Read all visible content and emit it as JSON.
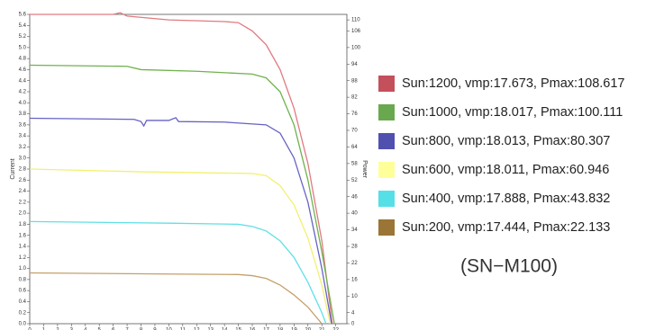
{
  "chart_data": {
    "type": "line",
    "title": "(SN−M100)",
    "y_label": "Current",
    "y2_label": "Power",
    "xlim": [
      0,
      22.8
    ],
    "xticks": [
      0,
      1,
      2,
      3,
      4,
      5,
      6,
      7,
      8,
      9,
      10,
      11,
      12,
      13,
      14,
      15,
      16,
      17,
      18,
      19,
      20,
      21,
      22
    ],
    "ylim": [
      0,
      5.6
    ],
    "yticks": [
      {
        "value": 0,
        "label": "0.0"
      },
      0.2,
      0.4,
      0.6,
      0.8,
      {
        "value": 1,
        "label": "1.0"
      },
      1.2,
      1.4,
      1.6,
      1.8,
      {
        "value": 2,
        "label": "2.0"
      },
      2.2,
      2.4,
      2.6,
      2.8,
      {
        "value": 3,
        "label": "3.0"
      },
      3.2,
      3.4,
      3.6,
      3.8,
      {
        "value": 4,
        "label": "4.0"
      },
      4.2,
      4.4,
      4.6,
      4.8,
      {
        "value": 5,
        "label": "5.0"
      },
      5.2,
      5.4,
      5.6
    ],
    "y2lim": [
      0,
      112
    ],
    "y2ticks": [
      0,
      4,
      10,
      16,
      22,
      28,
      34,
      40,
      46,
      52,
      58,
      64,
      70,
      76,
      82,
      88,
      94,
      100,
      106,
      110
    ],
    "series": [
      {
        "name": "Sun:1200, vmp:17.673, Pmax:108.617",
        "color": "#e07a80",
        "swatch_color": "#c4505c",
        "x": [
          0,
          6,
          6.5,
          7,
          10,
          14,
          15,
          16,
          17,
          18,
          19,
          20,
          21,
          21.75
        ],
        "values": [
          5.6,
          5.6,
          5.63,
          5.57,
          5.5,
          5.47,
          5.45,
          5.3,
          5.05,
          4.6,
          3.9,
          2.9,
          1.5,
          0
        ]
      },
      {
        "name": "Sun:1000, vmp:18.017, Pmax:100.111",
        "color": "#6fb24e",
        "swatch_color": "#6aa84f",
        "x": [
          0,
          7,
          8,
          12,
          16,
          17,
          18,
          19,
          20,
          21,
          21.9
        ],
        "values": [
          4.68,
          4.66,
          4.6,
          4.57,
          4.52,
          4.45,
          4.2,
          3.6,
          2.6,
          1.3,
          0
        ]
      },
      {
        "name": "Sun:800, vmp:18.013, Pmax:80.307",
        "color": "#6462c4",
        "swatch_color": "#5050b0",
        "x": [
          0,
          7.5,
          8,
          8.2,
          8.4,
          10,
          10.5,
          10.7,
          14,
          17,
          18,
          19,
          20,
          21,
          21.7
        ],
        "values": [
          3.72,
          3.7,
          3.66,
          3.58,
          3.68,
          3.68,
          3.73,
          3.66,
          3.65,
          3.6,
          3.45,
          3.0,
          2.2,
          1.0,
          0
        ]
      },
      {
        "name": "Sun:600, vmp:18.011, Pmax:60.946",
        "color": "#f2f070",
        "swatch_color": "#ffff99",
        "x": [
          0,
          8,
          16,
          17,
          18,
          19,
          20,
          21,
          21.6
        ],
        "values": [
          2.8,
          2.75,
          2.72,
          2.68,
          2.5,
          2.15,
          1.55,
          0.7,
          0
        ]
      },
      {
        "name": "Sun:400, vmp:17.888, Pmax:43.832",
        "color": "#60e0e6",
        "swatch_color": "#55e0e8",
        "x": [
          0,
          10,
          15,
          16,
          17,
          18,
          19,
          20,
          21,
          21.3
        ],
        "values": [
          1.85,
          1.82,
          1.8,
          1.76,
          1.68,
          1.5,
          1.2,
          0.75,
          0.2,
          0
        ]
      },
      {
        "name": "Sun:200, vmp:17.444, Pmax:22.133",
        "color": "#c4a06a",
        "swatch_color": "#9a7535",
        "x": [
          0,
          10,
          15,
          16,
          17,
          18,
          19,
          20,
          21
        ],
        "values": [
          0.92,
          0.9,
          0.89,
          0.87,
          0.82,
          0.7,
          0.52,
          0.3,
          0
        ]
      }
    ]
  }
}
